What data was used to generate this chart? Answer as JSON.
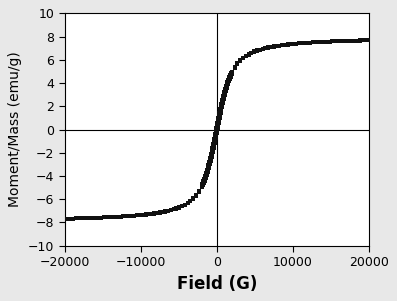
{
  "xlim": [
    -20000,
    20000
  ],
  "ylim": [
    -10,
    10
  ],
  "xticks": [
    -20000,
    -10000,
    0,
    10000,
    20000
  ],
  "yticks": [
    -10,
    -8,
    -6,
    -4,
    -2,
    0,
    2,
    4,
    6,
    8,
    10
  ],
  "xlabel": "Field (G)",
  "ylabel": "Moment/Mass (emu/g)",
  "xlabel_fontsize": 12,
  "ylabel_fontsize": 10,
  "marker": "s",
  "marker_size": 2.2,
  "marker_color": "#111111",
  "sat_moment": 8.0,
  "coercivity": 60,
  "langevin_a": 800,
  "background_color": "#ffffff",
  "outer_background": "#e8e8e8",
  "tick_fontsize": 9,
  "figsize": [
    3.97,
    3.01
  ],
  "dpi": 100
}
